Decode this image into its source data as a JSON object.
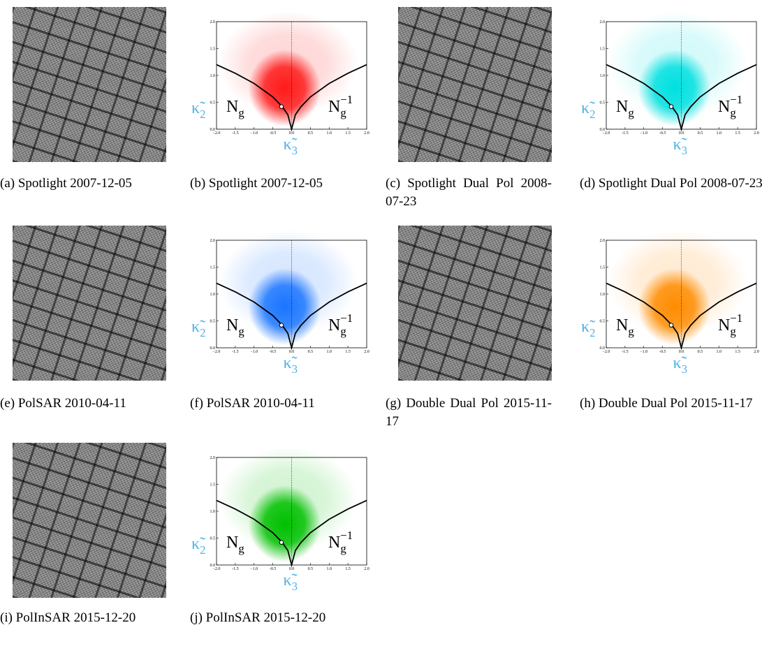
{
  "image_captions": [
    "(a) Spotlight 2007-12-05",
    "(c) Spotlight Dual Pol 2008-07-23",
    "(e) PolSAR 2010-04-11",
    "(g) Double Dual Pol 2015-11-17",
    "(i) PolInSAR 2015-12-20"
  ],
  "chart_data": [
    {
      "type": "scatter",
      "caption": "(b) Spotlight 2007-12-05",
      "color": "#ff1a1a",
      "xlabel": {
        "base": "κ̃",
        "sub": "3"
      },
      "ylabel": {
        "base": "κ̃",
        "sub": "2"
      },
      "left_label": {
        "base": "N",
        "sub": "g"
      },
      "right_label": {
        "base": "N",
        "sub": "g",
        "sup": "−1"
      },
      "xlim": [
        -2,
        2
      ],
      "ylim": [
        0,
        2
      ],
      "xticks": [
        {
          "value": -2,
          "label": "−2.0"
        },
        -1.5,
        {
          "value": -1,
          "label": "−1.0"
        },
        -0.5,
        {
          "value": 0,
          "label": "0.0"
        },
        0.5,
        {
          "value": 1,
          "label": "1.0"
        },
        1.5,
        {
          "value": 2,
          "label": "2.0"
        }
      ],
      "yticks": [
        {
          "value": 0,
          "label": "0.0"
        },
        0.5,
        {
          "value": 1,
          "label": "1.0"
        },
        1.5,
        {
          "value": 2,
          "label": "2.0"
        }
      ],
      "boundary": {
        "x": [
          -2,
          -1.5,
          -1,
          -0.5,
          -0.25,
          -0.1,
          0,
          0.1,
          0.25,
          0.5,
          1,
          1.5,
          2
        ],
        "y": [
          1.2,
          1.04,
          0.85,
          0.6,
          0.42,
          0.27,
          0,
          0.27,
          0.42,
          0.6,
          0.85,
          1.04,
          1.2
        ]
      },
      "marker": {
        "x": -0.27,
        "y": 0.42
      }
    },
    {
      "type": "scatter",
      "caption": "(d) Spotlight Dual Pol 2008-07-23",
      "color": "#00e0e0",
      "xlabel": {
        "base": "κ̃",
        "sub": "3"
      },
      "ylabel": {
        "base": "κ̃",
        "sub": "2"
      },
      "left_label": {
        "base": "N",
        "sub": "g"
      },
      "right_label": {
        "base": "N",
        "sub": "g",
        "sup": "−1"
      },
      "xlim": [
        -2,
        2
      ],
      "ylim": [
        0,
        2
      ],
      "xticks": [
        {
          "value": -2,
          "label": "−2.0"
        },
        -1.5,
        {
          "value": -1,
          "label": "−1.0"
        },
        -0.5,
        {
          "value": 0,
          "label": "0.0"
        },
        0.5,
        {
          "value": 1,
          "label": "1.0"
        },
        1.5,
        {
          "value": 2,
          "label": "2.0"
        }
      ],
      "yticks": [
        {
          "value": 0,
          "label": "0.0"
        },
        0.5,
        {
          "value": 1,
          "label": "1.0"
        },
        1.5,
        {
          "value": 2,
          "label": "2.0"
        }
      ],
      "boundary": {
        "x": [
          -2,
          -1.5,
          -1,
          -0.5,
          -0.25,
          -0.1,
          0,
          0.1,
          0.25,
          0.5,
          1,
          1.5,
          2
        ],
        "y": [
          1.2,
          1.04,
          0.85,
          0.6,
          0.42,
          0.27,
          0,
          0.27,
          0.42,
          0.6,
          0.85,
          1.04,
          1.2
        ]
      },
      "marker": {
        "x": -0.27,
        "y": 0.42
      }
    },
    {
      "type": "scatter",
      "caption": "(f) PolSAR 2010-04-11",
      "color": "#1a75ff",
      "xlabel": {
        "base": "κ̃",
        "sub": "3"
      },
      "ylabel": {
        "base": "κ̃",
        "sub": "2"
      },
      "left_label": {
        "base": "N",
        "sub": "g"
      },
      "right_label": {
        "base": "N",
        "sub": "g",
        "sup": "−1"
      },
      "xlim": [
        -2,
        2
      ],
      "ylim": [
        0,
        2
      ],
      "xticks": [
        {
          "value": -2,
          "label": "−2.0"
        },
        -1.5,
        {
          "value": -1,
          "label": "−1.0"
        },
        -0.5,
        {
          "value": 0,
          "label": "0.0"
        },
        0.5,
        {
          "value": 1,
          "label": "1.0"
        },
        1.5,
        {
          "value": 2,
          "label": "2.0"
        }
      ],
      "yticks": [
        {
          "value": 0,
          "label": "0.0"
        },
        0.5,
        {
          "value": 1,
          "label": "1.0"
        },
        1.5,
        {
          "value": 2,
          "label": "2.0"
        }
      ],
      "boundary": {
        "x": [
          -2,
          -1.5,
          -1,
          -0.5,
          -0.25,
          -0.1,
          0,
          0.1,
          0.25,
          0.5,
          1,
          1.5,
          2
        ],
        "y": [
          1.2,
          1.04,
          0.85,
          0.6,
          0.42,
          0.27,
          0,
          0.27,
          0.42,
          0.6,
          0.85,
          1.04,
          1.2
        ]
      },
      "marker": {
        "x": -0.27,
        "y": 0.42
      }
    },
    {
      "type": "scatter",
      "caption": "(h) Double Dual Pol 2015-11-17",
      "color": "#ff8c00",
      "xlabel": {
        "base": "κ̃",
        "sub": "3"
      },
      "ylabel": {
        "base": "κ̃",
        "sub": "2"
      },
      "left_label": {
        "base": "N",
        "sub": "g"
      },
      "right_label": {
        "base": "N",
        "sub": "g",
        "sup": "−1"
      },
      "xlim": [
        -2,
        2
      ],
      "ylim": [
        0,
        2
      ],
      "xticks": [
        {
          "value": -2,
          "label": "−2.0"
        },
        -1.5,
        {
          "value": -1,
          "label": "−1.0"
        },
        -0.5,
        {
          "value": 0,
          "label": "0.0"
        },
        0.5,
        {
          "value": 1,
          "label": "1.0"
        },
        1.5,
        {
          "value": 2,
          "label": "2.0"
        }
      ],
      "yticks": [
        {
          "value": 0,
          "label": "0.0"
        },
        0.5,
        {
          "value": 1,
          "label": "1.0"
        },
        1.5,
        {
          "value": 2,
          "label": "2.0"
        }
      ],
      "boundary": {
        "x": [
          -2,
          -1.5,
          -1,
          -0.5,
          -0.25,
          -0.1,
          0,
          0.1,
          0.25,
          0.5,
          1,
          1.5,
          2
        ],
        "y": [
          1.2,
          1.04,
          0.85,
          0.6,
          0.42,
          0.27,
          0,
          0.27,
          0.42,
          0.6,
          0.85,
          1.04,
          1.2
        ]
      },
      "marker": {
        "x": -0.27,
        "y": 0.42
      }
    },
    {
      "type": "scatter",
      "caption": "(j) PolInSAR 2015-12-20",
      "color": "#00c000",
      "xlabel": {
        "base": "κ̃",
        "sub": "3"
      },
      "ylabel": {
        "base": "κ̃",
        "sub": "2"
      },
      "left_label": {
        "base": "N",
        "sub": "g"
      },
      "right_label": {
        "base": "N",
        "sub": "g",
        "sup": "−1"
      },
      "xlim": [
        -2,
        2
      ],
      "ylim": [
        0,
        2
      ],
      "xticks": [
        {
          "value": -2,
          "label": "−2.0"
        },
        -1.5,
        {
          "value": -1,
          "label": "−1.0"
        },
        -0.5,
        {
          "value": 0,
          "label": "0.0"
        },
        0.5,
        {
          "value": 1,
          "label": "1.0"
        },
        1.5,
        {
          "value": 2,
          "label": "2.0"
        }
      ],
      "yticks": [
        {
          "value": 0,
          "label": "0.0"
        },
        0.5,
        {
          "value": 1,
          "label": "1.0"
        },
        1.5,
        {
          "value": 2,
          "label": "2.0"
        }
      ],
      "boundary": {
        "x": [
          -2,
          -1.5,
          -1,
          -0.5,
          -0.25,
          -0.1,
          0,
          0.1,
          0.25,
          0.5,
          1,
          1.5,
          2
        ],
        "y": [
          1.2,
          1.04,
          0.85,
          0.6,
          0.42,
          0.27,
          0,
          0.27,
          0.42,
          0.6,
          0.85,
          1.04,
          1.2
        ]
      },
      "marker": {
        "x": -0.27,
        "y": 0.42
      }
    }
  ]
}
